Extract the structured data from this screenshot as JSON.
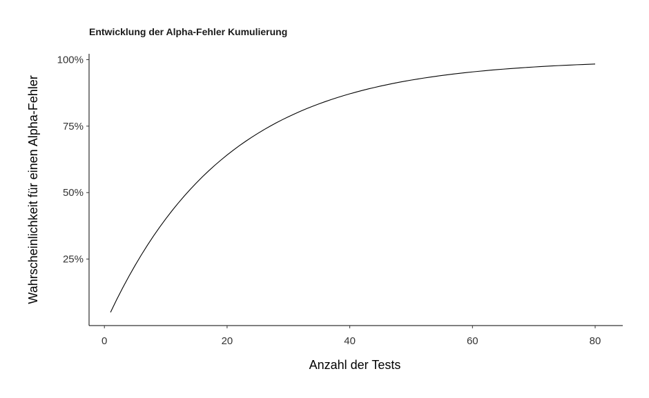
{
  "chart_data": {
    "type": "line",
    "title": "Entwicklung der Alpha-Fehler Kumulierung",
    "xlabel": "Anzahl der Tests",
    "ylabel": "Wahrscheinlichkeit für einen Alpha-Fehler",
    "xlim": [
      -2.5,
      84.5
    ],
    "ylim": [
      0.0,
      1.022
    ],
    "x_ticks": [
      0,
      20,
      40,
      60,
      80
    ],
    "x_tick_labels": [
      "0",
      "20",
      "40",
      "60",
      "80"
    ],
    "y_ticks": [
      0.25,
      0.5,
      0.75,
      1.0
    ],
    "y_tick_labels": [
      "25%",
      "50%",
      "75%",
      "100%"
    ],
    "grid": false,
    "legend": "none",
    "series": [
      {
        "color": "#000000",
        "x": [
          1,
          2,
          3,
          4,
          5,
          6,
          7,
          8,
          9,
          10,
          11,
          12,
          13,
          14,
          15,
          16,
          17,
          18,
          19,
          20,
          21,
          22,
          23,
          24,
          25,
          26,
          27,
          28,
          29,
          30,
          31,
          32,
          33,
          34,
          35,
          36,
          37,
          38,
          39,
          40,
          41,
          42,
          43,
          44,
          45,
          46,
          47,
          48,
          49,
          50,
          51,
          52,
          53,
          54,
          55,
          56,
          57,
          58,
          59,
          60,
          61,
          62,
          63,
          64,
          65,
          66,
          67,
          68,
          69,
          70,
          71,
          72,
          73,
          74,
          75,
          76,
          77,
          78,
          79,
          80
        ],
        "y": [
          0.05,
          0.0975,
          0.1426,
          0.1855,
          0.2262,
          0.2649,
          0.3017,
          0.3366,
          0.3698,
          0.4013,
          0.4312,
          0.4596,
          0.4867,
          0.5123,
          0.5367,
          0.5599,
          0.5819,
          0.6028,
          0.6226,
          0.6415,
          0.6594,
          0.6765,
          0.6926,
          0.708,
          0.7226,
          0.7365,
          0.7497,
          0.7622,
          0.7741,
          0.7854,
          0.7961,
          0.8063,
          0.816,
          0.8252,
          0.8339,
          0.8422,
          0.8501,
          0.8576,
          0.8647,
          0.8715,
          0.8779,
          0.884,
          0.8898,
          0.8953,
          0.9006,
          0.9055,
          0.9103,
          0.9148,
          0.919,
          0.9231,
          0.9269,
          0.9306,
          0.934,
          0.9373,
          0.9405,
          0.9434,
          0.9463,
          0.9489,
          0.9515,
          0.9539,
          0.9562,
          0.9584,
          0.9605,
          0.9625,
          0.9643,
          0.9661,
          0.9678,
          0.9694,
          0.971,
          0.9724,
          0.9738,
          0.9751,
          0.9764,
          0.9776,
          0.9787,
          0.9798,
          0.9808,
          0.9817,
          0.9827,
          0.9835
        ]
      }
    ]
  }
}
